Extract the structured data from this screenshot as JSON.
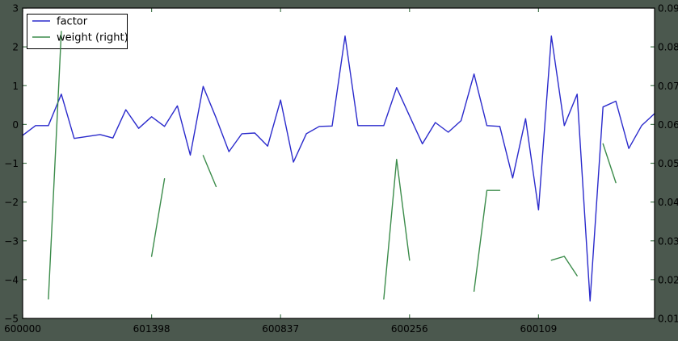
{
  "chart_data": {
    "type": "line",
    "title": "",
    "n_points": 50,
    "grid": false,
    "x_axis": {
      "tick_indices": [
        0,
        10,
        20,
        30,
        40
      ],
      "tick_labels": [
        "600000",
        "601398",
        "600837",
        "600256",
        "600109"
      ]
    },
    "left_axis": {
      "min": -5,
      "max": 3,
      "tick_values": [
        3,
        2,
        1,
        0,
        -1,
        -2,
        -3,
        -4,
        -5
      ],
      "tick_labels": [
        "3",
        "2",
        "1",
        "0",
        "−1",
        "−2",
        "−3",
        "−4",
        "−5"
      ]
    },
    "right_axis": {
      "min": 0.01,
      "max": 0.09,
      "tick_values": [
        0.09,
        0.08,
        0.07,
        0.06,
        0.05,
        0.04,
        0.03,
        0.02,
        0.01
      ],
      "tick_labels": [
        "0.09",
        "0.08",
        "0.07",
        "0.06",
        "0.05",
        "0.04",
        "0.03",
        "0.02",
        "0.01"
      ]
    },
    "legend": {
      "position": "upper-left",
      "entries": [
        "factor",
        "weight (right)"
      ]
    },
    "series": [
      {
        "name": "factor",
        "axis": "left",
        "color": "#2b2bcc",
        "values": [
          -0.28,
          -0.03,
          -0.03,
          0.78,
          -0.36,
          -0.31,
          -0.26,
          -0.35,
          0.38,
          -0.1,
          0.2,
          -0.05,
          0.48,
          -0.79,
          0.98,
          0.17,
          -0.7,
          -0.24,
          -0.22,
          -0.56,
          0.63,
          -0.97,
          -0.24,
          -0.05,
          -0.04,
          2.28,
          -0.03,
          -0.03,
          -0.03,
          0.95,
          0.22,
          -0.5,
          0.05,
          -0.2,
          0.1,
          1.3,
          -0.03,
          -0.05,
          -1.38,
          0.15,
          -2.2,
          2.28,
          -0.03,
          0.78,
          -4.55,
          0.45,
          0.6,
          -0.62,
          -0.03,
          0.28
        ]
      },
      {
        "name": "weight (right)",
        "axis": "right",
        "color": "#3c8c4b",
        "values": [
          null,
          null,
          0.015,
          0.084,
          null,
          null,
          null,
          null,
          null,
          null,
          0.026,
          0.046,
          null,
          null,
          0.052,
          0.044,
          null,
          null,
          null,
          null,
          null,
          null,
          null,
          null,
          null,
          null,
          null,
          null,
          0.015,
          0.051,
          0.025,
          null,
          null,
          null,
          null,
          0.017,
          0.043,
          0.043,
          null,
          null,
          null,
          0.025,
          0.026,
          0.021,
          null,
          0.055,
          0.045,
          null,
          null,
          null
        ]
      }
    ]
  },
  "colors": {
    "figure_bg": "#4b584e",
    "plot_bg": "#ffffff",
    "spine": "#000000",
    "tick": "#4a7a52",
    "tick_label": "#000000",
    "factor_line": "#2b2bcc",
    "weight_line": "#3c8c4b",
    "legend_bg": "#ffffff",
    "legend_border": "#000000"
  }
}
